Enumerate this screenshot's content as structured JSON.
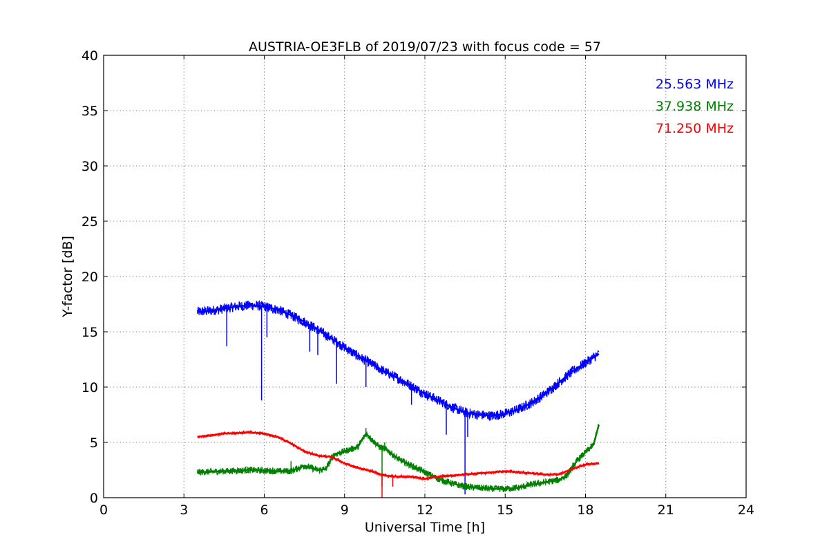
{
  "chart_data": {
    "type": "line",
    "title": "AUSTRIA-OE3FLB of 2019/07/23 with focus code = 57",
    "xlabel": "Universal Time [h]",
    "ylabel": "Y-factor [dB]",
    "xlim": [
      0,
      24
    ],
    "ylim": [
      0,
      40
    ],
    "xticks": [
      "0",
      "3",
      "6",
      "9",
      "12",
      "15",
      "18",
      "21",
      "24"
    ],
    "yticks": [
      "0",
      "5",
      "10",
      "15",
      "20",
      "25",
      "30",
      "35",
      "40"
    ],
    "grid": true,
    "legend_position": "top-right",
    "series": [
      {
        "name": "25.563 MHz",
        "color": "#0000ff",
        "noise": 0.45,
        "x": [
          3.5,
          4.0,
          4.5,
          5.0,
          5.5,
          6.0,
          6.5,
          7.0,
          7.5,
          8.0,
          8.5,
          9.0,
          9.5,
          10.0,
          10.5,
          11.0,
          11.5,
          12.0,
          12.5,
          13.0,
          13.5,
          14.0,
          14.5,
          15.0,
          15.5,
          16.0,
          16.5,
          17.0,
          17.5,
          18.0,
          18.5
        ],
        "y": [
          16.8,
          16.9,
          17.1,
          17.3,
          17.4,
          17.3,
          17.0,
          16.5,
          15.9,
          15.2,
          14.4,
          13.6,
          12.8,
          12.1,
          11.4,
          10.8,
          10.1,
          9.4,
          8.8,
          8.2,
          7.7,
          7.5,
          7.4,
          7.6,
          8.0,
          8.6,
          9.4,
          10.4,
          11.4,
          12.2,
          13.0
        ],
        "spikes": [
          [
            4.6,
            13.7
          ],
          [
            5.9,
            8.8
          ],
          [
            6.1,
            14.5
          ],
          [
            7.7,
            13.2
          ],
          [
            8.0,
            12.9
          ],
          [
            8.7,
            10.3
          ],
          [
            9.8,
            10.0
          ],
          [
            11.5,
            8.4
          ],
          [
            12.8,
            5.7
          ],
          [
            13.5,
            0.3
          ],
          [
            13.6,
            5.5
          ]
        ]
      },
      {
        "name": "37.938 MHz",
        "color": "#008000",
        "noise": 0.3,
        "x": [
          3.5,
          4.5,
          5.5,
          6.5,
          7.0,
          7.5,
          8.0,
          8.3,
          8.6,
          9.0,
          9.5,
          9.8,
          10.0,
          10.3,
          10.6,
          11.0,
          11.5,
          12.0,
          12.5,
          13.0,
          13.5,
          14.0,
          14.5,
          15.0,
          15.5,
          16.0,
          16.5,
          17.0,
          17.3,
          17.7,
          18.0,
          18.3,
          18.5
        ],
        "y": [
          2.3,
          2.4,
          2.5,
          2.4,
          2.4,
          2.9,
          2.5,
          2.6,
          3.9,
          4.2,
          4.6,
          5.8,
          5.3,
          4.6,
          4.3,
          3.5,
          2.9,
          2.3,
          1.7,
          1.3,
          1.0,
          0.9,
          0.8,
          0.8,
          0.9,
          1.2,
          1.4,
          1.6,
          2.0,
          3.4,
          4.1,
          4.8,
          6.6
        ],
        "spikes": [
          [
            7.0,
            3.3
          ],
          [
            9.8,
            6.3
          ],
          [
            10.5,
            5.0
          ],
          [
            10.4,
            1.0
          ]
        ]
      },
      {
        "name": "71.250 MHz",
        "color": "#ff0000",
        "noise": 0.12,
        "x": [
          3.5,
          4.5,
          5.5,
          6.0,
          6.5,
          7.0,
          7.5,
          8.0,
          8.5,
          9.0,
          9.5,
          10.0,
          10.5,
          11.0,
          11.5,
          12.0,
          12.5,
          13.0,
          13.5,
          14.0,
          14.5,
          15.0,
          15.5,
          16.0,
          16.5,
          17.0,
          17.5,
          18.0,
          18.5
        ],
        "y": [
          5.5,
          5.8,
          5.9,
          5.8,
          5.5,
          4.9,
          4.2,
          3.8,
          3.7,
          3.1,
          2.7,
          2.4,
          2.0,
          1.9,
          1.9,
          1.7,
          1.9,
          2.0,
          2.1,
          2.2,
          2.3,
          2.4,
          2.3,
          2.2,
          2.1,
          2.1,
          2.6,
          3.0,
          3.1
        ],
        "spikes": [
          [
            10.4,
            0.0
          ],
          [
            10.8,
            1.0
          ]
        ]
      }
    ]
  }
}
